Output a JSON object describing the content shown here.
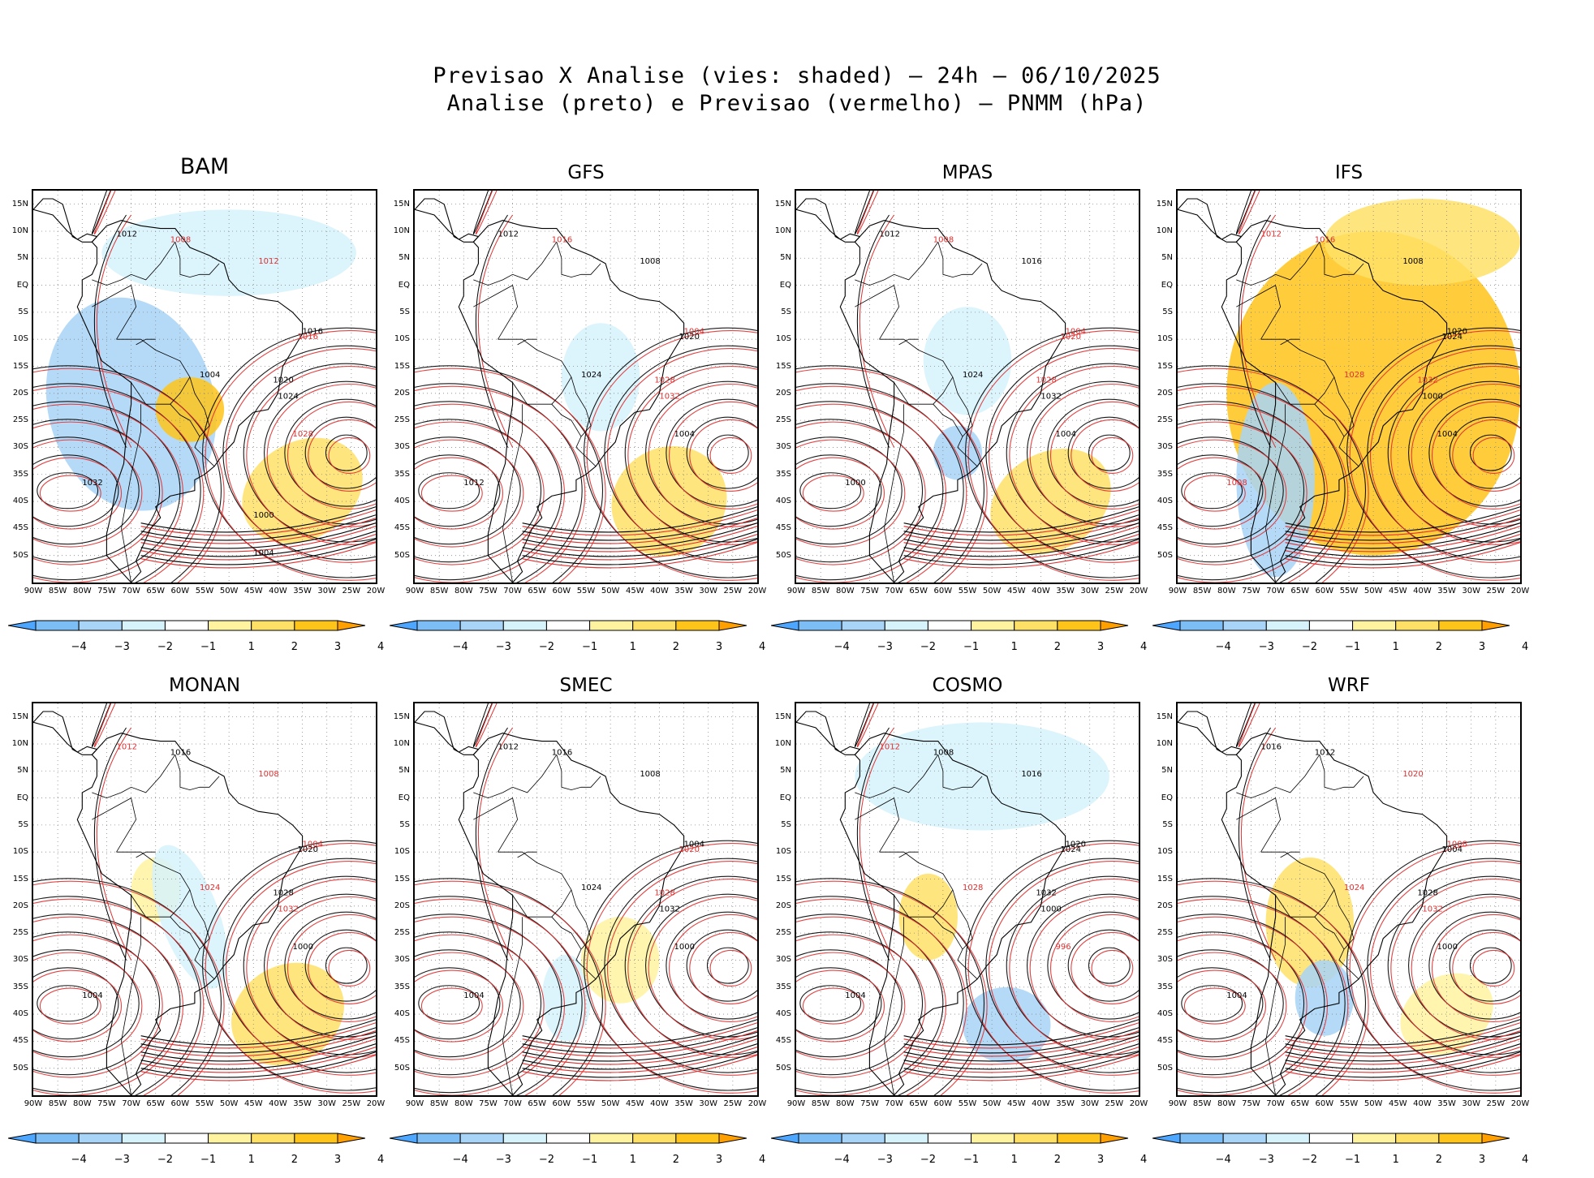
{
  "title_line1": "Previsao X Analise (vies: shaded) – 24h – 06/10/2025",
  "title_line2": "Analise (preto) e Previsao (vermelho) – PNMM (hPa)",
  "lat_labels": [
    "15N",
    "10N",
    "5N",
    "EQ",
    "5S",
    "10S",
    "15S",
    "20S",
    "25S",
    "30S",
    "35S",
    "40S",
    "45S",
    "50S"
  ],
  "lon_labels": [
    "90W",
    "85W",
    "80W",
    "75W",
    "70W",
    "65W",
    "60W",
    "55W",
    "50W",
    "45W",
    "40W",
    "35W",
    "30W",
    "25W",
    "20W"
  ],
  "colorbar": {
    "labels": [
      "−4",
      "−3",
      "−2",
      "−1",
      "1",
      "2",
      "3",
      "4"
    ],
    "colors": [
      "#4da6ff",
      "#7dbdf5",
      "#a8d4f7",
      "#d6f2fb",
      "#ffffff",
      "#fff3a0",
      "#ffe066",
      "#ffc41a",
      "#ff9f00"
    ]
  },
  "contour_colors": {
    "analysis": "#000000",
    "forecast": "#e03030"
  },
  "panels": [
    {
      "model": "BAM",
      "bias_regions": [
        {
          "sign": "negative",
          "level": -2,
          "area": "central South America and adjacent eastern Pacific"
        },
        {
          "sign": "negative",
          "level": -1,
          "area": "tropical Atlantic north of Brazil"
        },
        {
          "sign": "positive",
          "level": 3,
          "area": "Paraguay / southern Brazil"
        },
        {
          "sign": "positive",
          "level": 2,
          "area": "South Atlantic southeast of Brazil"
        }
      ],
      "contour_labels": [
        {
          "text": "1012",
          "color": "analysis"
        },
        {
          "text": "1008",
          "color": "forecast"
        },
        {
          "text": "1012",
          "color": "forecast"
        },
        {
          "text": "1016",
          "color": "analysis"
        },
        {
          "text": "1016",
          "color": "forecast"
        },
        {
          "text": "1004",
          "color": "analysis"
        },
        {
          "text": "1020",
          "color": "analysis"
        },
        {
          "text": "1024",
          "color": "analysis"
        },
        {
          "text": "1028",
          "color": "forecast"
        },
        {
          "text": "1032",
          "color": "analysis"
        },
        {
          "text": "1000",
          "color": "analysis"
        },
        {
          "text": "1004",
          "color": "analysis"
        }
      ]
    },
    {
      "model": "GFS",
      "bias_regions": [
        {
          "sign": "negative",
          "level": -1,
          "area": "central Brazil"
        },
        {
          "sign": "positive",
          "level": 2,
          "area": "South Atlantic southeast of Brazil"
        }
      ],
      "contour_labels": [
        {
          "text": "1012",
          "color": "analysis"
        },
        {
          "text": "1016",
          "color": "forecast"
        },
        {
          "text": "1008",
          "color": "analysis"
        },
        {
          "text": "1004",
          "color": "forecast"
        },
        {
          "text": "1020",
          "color": "analysis"
        },
        {
          "text": "1024",
          "color": "analysis"
        },
        {
          "text": "1028",
          "color": "forecast"
        },
        {
          "text": "1032",
          "color": "forecast"
        },
        {
          "text": "1004",
          "color": "analysis"
        },
        {
          "text": "1012",
          "color": "analysis"
        }
      ]
    },
    {
      "model": "MPAS",
      "bias_regions": [
        {
          "sign": "negative",
          "level": -1,
          "area": "central Brazil"
        },
        {
          "sign": "negative",
          "level": -2,
          "area": "southern Brazil / Uruguay"
        },
        {
          "sign": "positive",
          "level": 2,
          "area": "South Atlantic southeast of Brazil"
        }
      ],
      "contour_labels": [
        {
          "text": "1012",
          "color": "analysis"
        },
        {
          "text": "1008",
          "color": "forecast"
        },
        {
          "text": "1016",
          "color": "analysis"
        },
        {
          "text": "1004",
          "color": "forecast"
        },
        {
          "text": "1020",
          "color": "forecast"
        },
        {
          "text": "1024",
          "color": "analysis"
        },
        {
          "text": "1028",
          "color": "forecast"
        },
        {
          "text": "1032",
          "color": "analysis"
        },
        {
          "text": "1004",
          "color": "analysis"
        },
        {
          "text": "1000",
          "color": "analysis"
        }
      ]
    },
    {
      "model": "IFS",
      "bias_regions": [
        {
          "sign": "positive",
          "level": 3,
          "area": "most of South America and South Atlantic"
        },
        {
          "sign": "positive",
          "level": 2,
          "area": "tropical Atlantic"
        },
        {
          "sign": "negative",
          "level": -2,
          "area": "Argentina and eastern Pacific off Chile"
        }
      ],
      "contour_labels": [
        {
          "text": "1012",
          "color": "forecast"
        },
        {
          "text": "1016",
          "color": "forecast"
        },
        {
          "text": "1008",
          "color": "analysis"
        },
        {
          "text": "1020",
          "color": "analysis"
        },
        {
          "text": "1024",
          "color": "analysis"
        },
        {
          "text": "1028",
          "color": "forecast"
        },
        {
          "text": "1032",
          "color": "forecast"
        },
        {
          "text": "1000",
          "color": "analysis"
        },
        {
          "text": "1004",
          "color": "analysis"
        },
        {
          "text": "1008",
          "color": "forecast"
        }
      ]
    },
    {
      "model": "MONAN",
      "bias_regions": [
        {
          "sign": "positive",
          "level": 2,
          "area": "South Atlantic southeast of Brazil"
        },
        {
          "sign": "positive",
          "level": 1,
          "area": "Andes / Bolivia"
        },
        {
          "sign": "negative",
          "level": -1,
          "area": "central Brazil to Argentina"
        }
      ],
      "contour_labels": [
        {
          "text": "1012",
          "color": "forecast"
        },
        {
          "text": "1016",
          "color": "analysis"
        },
        {
          "text": "1008",
          "color": "forecast"
        },
        {
          "text": "1004",
          "color": "forecast"
        },
        {
          "text": "1020",
          "color": "analysis"
        },
        {
          "text": "1024",
          "color": "forecast"
        },
        {
          "text": "1028",
          "color": "analysis"
        },
        {
          "text": "1032",
          "color": "forecast"
        },
        {
          "text": "1000",
          "color": "analysis"
        },
        {
          "text": "1004",
          "color": "analysis"
        }
      ]
    },
    {
      "model": "SMEC",
      "bias_regions": [
        {
          "sign": "negative",
          "level": -1,
          "area": "Argentina / Uruguay"
        },
        {
          "sign": "positive",
          "level": 1,
          "area": "southern Brazil and South Atlantic"
        }
      ],
      "contour_labels": [
        {
          "text": "1012",
          "color": "analysis"
        },
        {
          "text": "1016",
          "color": "analysis"
        },
        {
          "text": "1008",
          "color": "analysis"
        },
        {
          "text": "1004",
          "color": "analysis"
        },
        {
          "text": "1020",
          "color": "forecast"
        },
        {
          "text": "1024",
          "color": "analysis"
        },
        {
          "text": "1028",
          "color": "forecast"
        },
        {
          "text": "1032",
          "color": "analysis"
        },
        {
          "text": "1000",
          "color": "analysis"
        },
        {
          "text": "1004",
          "color": "analysis"
        }
      ]
    },
    {
      "model": "COSMO",
      "bias_regions": [
        {
          "sign": "negative",
          "level": -1,
          "area": "northern South America and tropical Atlantic"
        },
        {
          "sign": "negative",
          "level": -2,
          "area": "South Atlantic off Argentina"
        },
        {
          "sign": "positive",
          "level": 2,
          "area": "Bolivia / Paraguay"
        }
      ],
      "contour_labels": [
        {
          "text": "1012",
          "color": "forecast"
        },
        {
          "text": "1008",
          "color": "analysis"
        },
        {
          "text": "1016",
          "color": "analysis"
        },
        {
          "text": "1020",
          "color": "analysis"
        },
        {
          "text": "1024",
          "color": "analysis"
        },
        {
          "text": "1028",
          "color": "forecast"
        },
        {
          "text": "1032",
          "color": "analysis"
        },
        {
          "text": "1000",
          "color": "analysis"
        },
        {
          "text": "996",
          "color": "forecast"
        },
        {
          "text": "1004",
          "color": "analysis"
        }
      ]
    },
    {
      "model": "WRF",
      "bias_regions": [
        {
          "sign": "positive",
          "level": 2,
          "area": "Andes, Bolivia and southern Brazil"
        },
        {
          "sign": "negative",
          "level": -2,
          "area": "Argentina / Uruguay"
        },
        {
          "sign": "positive",
          "level": 1,
          "area": "South Atlantic"
        }
      ],
      "contour_labels": [
        {
          "text": "1016",
          "color": "analysis"
        },
        {
          "text": "1012",
          "color": "analysis"
        },
        {
          "text": "1020",
          "color": "forecast"
        },
        {
          "text": "1008",
          "color": "forecast"
        },
        {
          "text": "1004",
          "color": "analysis"
        },
        {
          "text": "1024",
          "color": "forecast"
        },
        {
          "text": "1028",
          "color": "analysis"
        },
        {
          "text": "1032",
          "color": "forecast"
        },
        {
          "text": "1000",
          "color": "analysis"
        },
        {
          "text": "1004",
          "color": "analysis"
        }
      ]
    }
  ]
}
